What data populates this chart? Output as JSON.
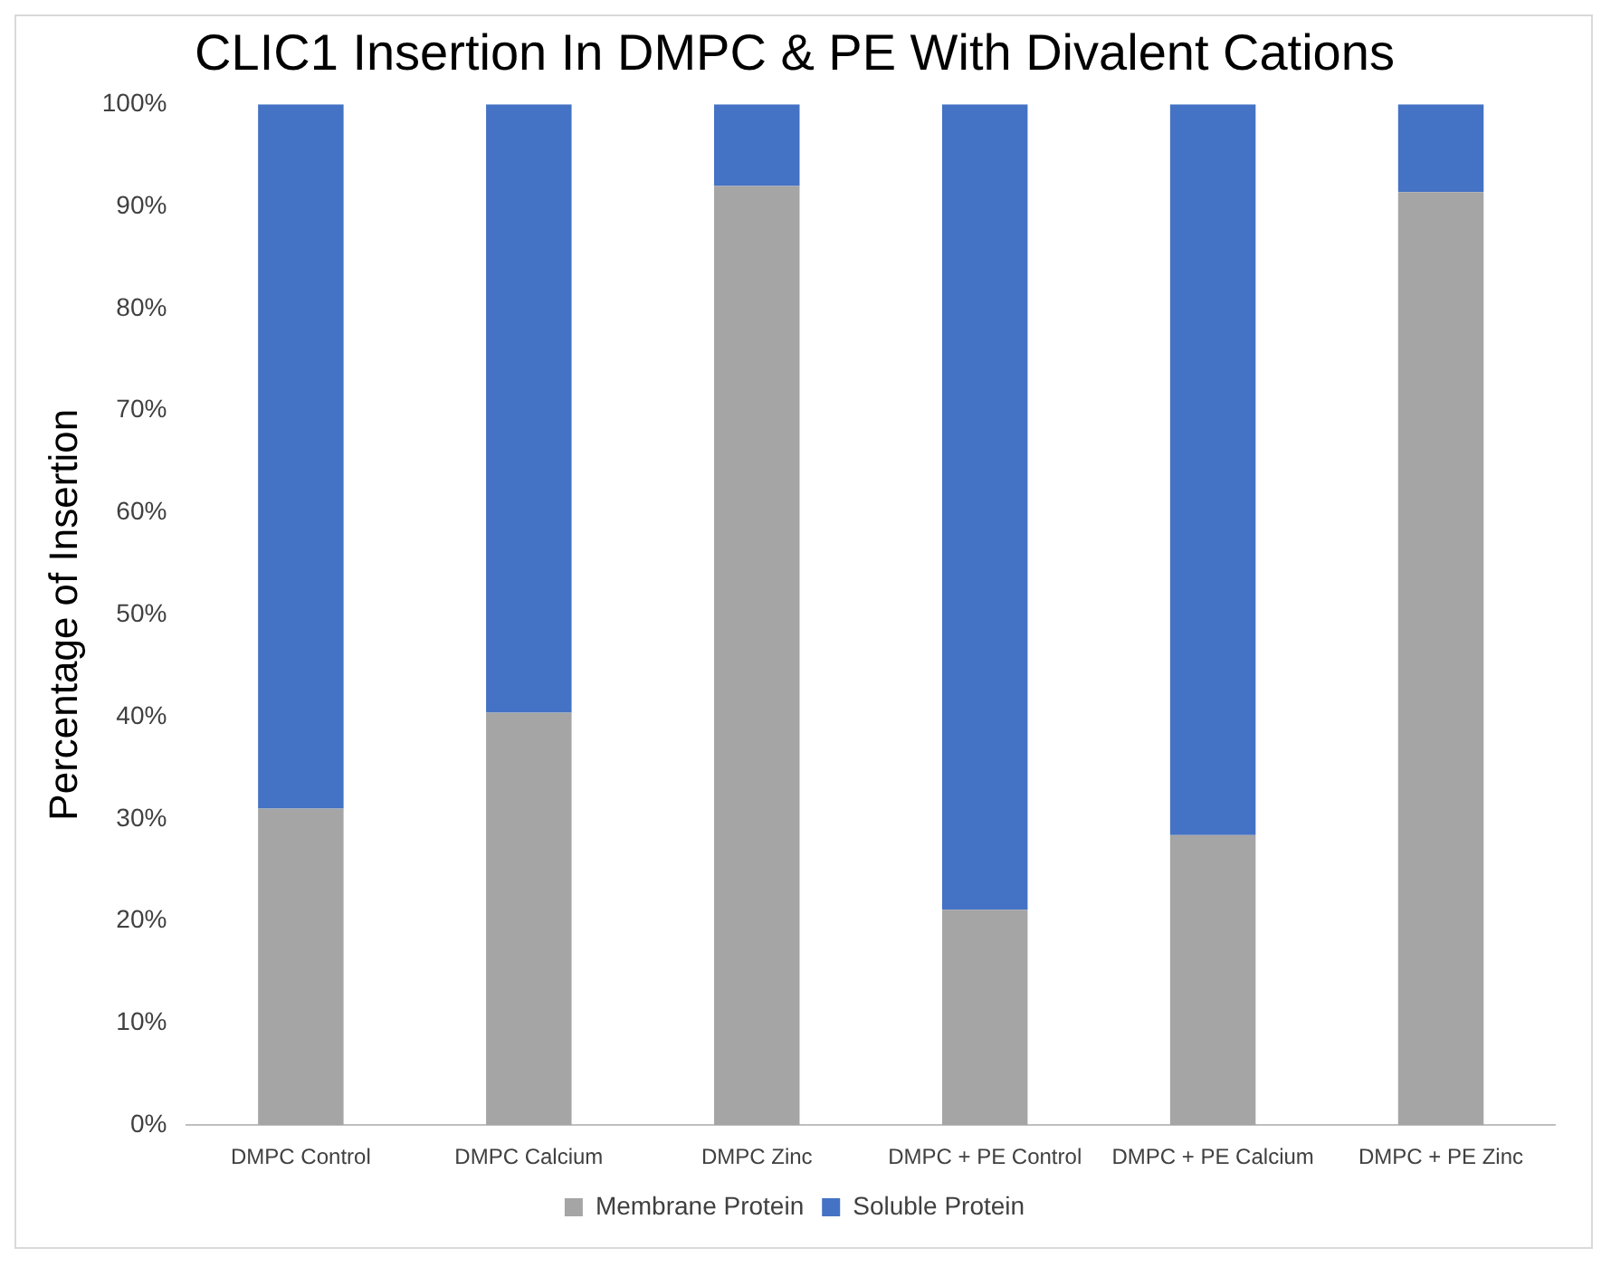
{
  "chart_data": {
    "type": "bar",
    "title": "CLIC1 Insertion In DMPC & PE With Divalent Cations",
    "ylabel": "Percentage of Insertion",
    "categories": [
      "DMPC Control",
      "DMPC Calcium",
      "DMPC Zinc",
      "DMPC + PE Control",
      "DMPC + PE Calcium",
      "DMPC + PE Zinc"
    ],
    "stacked": true,
    "series": [
      {
        "name": "Membrane Protein",
        "color": "#a5a5a5",
        "values": [
          31,
          40.4,
          92,
          21.1,
          28.4,
          91.4
        ]
      },
      {
        "name": "Soluble Protein",
        "color": "#4472c4",
        "values": [
          69,
          59.6,
          8,
          78.9,
          71.6,
          8.6
        ]
      }
    ],
    "ylim": [
      0,
      100
    ],
    "yticks": [
      {
        "value": 0,
        "label": "0%"
      },
      {
        "value": 10,
        "label": "10%"
      },
      {
        "value": 20,
        "label": "20%"
      },
      {
        "value": 30,
        "label": "30%"
      },
      {
        "value": 40,
        "label": "40%"
      },
      {
        "value": 50,
        "label": "50%"
      },
      {
        "value": 60,
        "label": "60%"
      },
      {
        "value": 70,
        "label": "70%"
      },
      {
        "value": 80,
        "label": "80%"
      },
      {
        "value": 90,
        "label": "90%"
      },
      {
        "value": 100,
        "label": "100%"
      }
    ],
    "grid": false,
    "legend": "bottom"
  }
}
